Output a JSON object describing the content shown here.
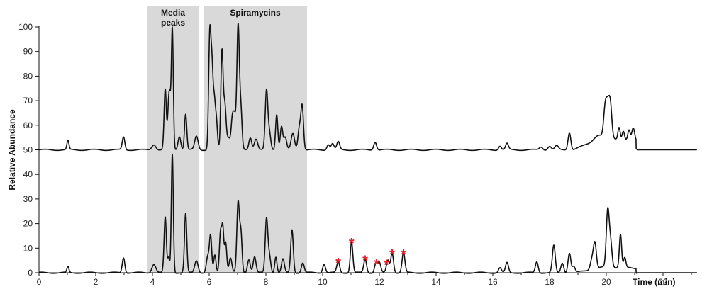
{
  "chart_data": {
    "type": "line",
    "title": "",
    "xlabel": "Time  (min)",
    "ylabel": "Relative Abundance",
    "xlim": [
      0,
      23.2
    ],
    "ylim": [
      0,
      100
    ],
    "x_ticks": [
      0,
      2,
      4,
      6,
      8,
      10,
      12,
      14,
      16,
      18,
      20,
      22
    ],
    "y_ticks": [
      0,
      10,
      20,
      30,
      40,
      50,
      60,
      70,
      80,
      90,
      100
    ],
    "y_tick_labels": [
      "0",
      "10",
      "20",
      "30",
      "40",
      "50",
      "60",
      "70",
      "80",
      "90",
      "100"
    ],
    "grid": false,
    "legend": "none",
    "regions": [
      {
        "label": "Media\npeaks",
        "x_start": 3.8,
        "x_end": 5.65,
        "color": "#d9d9d9"
      },
      {
        "label": "Spiramycins",
        "x_start": 5.8,
        "x_end": 9.45,
        "color": "#d9d9d9"
      }
    ],
    "series": [
      {
        "offset": 50,
        "color": "#111111",
        "end_x": 21.1,
        "baseline_after_end": 50,
        "peaks": [
          [
            1.02,
            3.7,
            0.035
          ],
          [
            2.98,
            5.2,
            0.045
          ],
          [
            4.05,
            2.2,
            0.07
          ],
          [
            4.45,
            24.5,
            0.04
          ],
          [
            4.57,
            17.5,
            0.035
          ],
          [
            4.62,
            14,
            0.03
          ],
          [
            4.7,
            49.5,
            0.035
          ],
          [
            4.95,
            5.5,
            0.05
          ],
          [
            5.17,
            14.5,
            0.04
          ],
          [
            5.55,
            5.5,
            0.06
          ],
          [
            6.02,
            45.5,
            0.04
          ],
          [
            6.1,
            31.5,
            0.04
          ],
          [
            6.18,
            16,
            0.035
          ],
          [
            6.25,
            12,
            0.04
          ],
          [
            6.45,
            39.5,
            0.04
          ],
          [
            6.55,
            18,
            0.045
          ],
          [
            6.68,
            5,
            0.06
          ],
          [
            6.82,
            13,
            0.045
          ],
          [
            6.9,
            11.5,
            0.04
          ],
          [
            7.02,
            50.5,
            0.045
          ],
          [
            7.12,
            15,
            0.04
          ],
          [
            7.45,
            5,
            0.05
          ],
          [
            7.65,
            4.5,
            0.06
          ],
          [
            8.02,
            23.5,
            0.045
          ],
          [
            8.12,
            7,
            0.05
          ],
          [
            8.38,
            14.5,
            0.04
          ],
          [
            8.55,
            9.5,
            0.045
          ],
          [
            8.68,
            5,
            0.05
          ],
          [
            8.95,
            6.5,
            0.06
          ],
          [
            9.18,
            9,
            0.05
          ],
          [
            9.28,
            17.5,
            0.045
          ],
          [
            10.2,
            2.2,
            0.05
          ],
          [
            10.35,
            2.5,
            0.05
          ],
          [
            10.55,
            3.2,
            0.05
          ],
          [
            11.85,
            3.3,
            0.05
          ],
          [
            16.25,
            1.6,
            0.05
          ],
          [
            16.5,
            2.5,
            0.05
          ],
          [
            17.7,
            1.2,
            0.06
          ],
          [
            18.0,
            1.5,
            0.06
          ],
          [
            18.25,
            1.6,
            0.06
          ],
          [
            18.7,
            7,
            0.05
          ],
          [
            19.7,
            2.2,
            0.15
          ],
          [
            19.95,
            8,
            0.05
          ],
          [
            20.05,
            14,
            0.07
          ],
          [
            20.15,
            10,
            0.05
          ],
          [
            20.45,
            5,
            0.04
          ],
          [
            20.6,
            3.5,
            0.04
          ],
          [
            20.8,
            4,
            0.04
          ],
          [
            20.95,
            5,
            0.05
          ]
        ],
        "hump": {
          "x_start": 18.8,
          "x_peak": 20.0,
          "x_end": 21.05,
          "height": 5
        }
      },
      {
        "offset": 0,
        "color": "#111111",
        "end_x": 21.1,
        "baseline_after_end": 0,
        "peaks": [
          [
            1.02,
            2.4,
            0.035
          ],
          [
            2.98,
            6.2,
            0.045
          ],
          [
            4.05,
            3.5,
            0.07
          ],
          [
            4.45,
            22.5,
            0.04
          ],
          [
            4.57,
            6,
            0.035
          ],
          [
            4.7,
            48.5,
            0.035
          ],
          [
            5.17,
            24,
            0.04
          ],
          [
            5.55,
            5,
            0.06
          ],
          [
            5.95,
            6.5,
            0.05
          ],
          [
            6.05,
            14.5,
            0.04
          ],
          [
            6.2,
            7,
            0.04
          ],
          [
            6.4,
            16.5,
            0.04
          ],
          [
            6.48,
            17.5,
            0.035
          ],
          [
            6.58,
            12.5,
            0.04
          ],
          [
            6.75,
            6,
            0.05
          ],
          [
            7.02,
            28.5,
            0.045
          ],
          [
            7.12,
            15.5,
            0.04
          ],
          [
            7.4,
            5.5,
            0.05
          ],
          [
            7.6,
            6.5,
            0.05
          ],
          [
            8.02,
            21.5,
            0.045
          ],
          [
            8.12,
            7,
            0.05
          ],
          [
            8.35,
            6.5,
            0.04
          ],
          [
            8.6,
            5.5,
            0.05
          ],
          [
            8.92,
            17.5,
            0.045
          ],
          [
            9.3,
            4,
            0.05
          ],
          [
            10.05,
            3.5,
            0.05
          ],
          [
            10.55,
            4.5,
            0.05
          ],
          [
            11.02,
            12.5,
            0.045
          ],
          [
            11.5,
            5.5,
            0.05
          ],
          [
            11.88,
            4,
            0.05
          ],
          [
            12.0,
            4,
            0.05
          ],
          [
            12.3,
            5,
            0.05
          ],
          [
            12.45,
            8,
            0.05
          ],
          [
            12.85,
            8,
            0.05
          ],
          [
            16.25,
            2,
            0.05
          ],
          [
            16.5,
            4,
            0.05
          ],
          [
            17.55,
            4.5,
            0.05
          ],
          [
            18.15,
            11,
            0.05
          ],
          [
            18.45,
            4,
            0.05
          ],
          [
            18.7,
            8,
            0.05
          ],
          [
            18.85,
            2.5,
            0.05
          ],
          [
            19.5,
            4.5,
            0.06
          ],
          [
            19.6,
            10,
            0.05
          ],
          [
            20.05,
            22.5,
            0.05
          ],
          [
            20.15,
            10,
            0.05
          ],
          [
            20.5,
            13.5,
            0.04
          ],
          [
            20.65,
            4,
            0.04
          ]
        ],
        "hump": {
          "x_start": 18.9,
          "x_peak": 20.0,
          "x_end": 21.05,
          "height": 2.5
        }
      }
    ],
    "annotations": [
      {
        "text": "*",
        "x": 10.55,
        "y": 5.5,
        "color": "#e8202a"
      },
      {
        "text": "*",
        "x": 11.02,
        "y": 13.5,
        "color": "#e8202a"
      },
      {
        "text": "*",
        "x": 11.5,
        "y": 6.5,
        "color": "#e8202a"
      },
      {
        "text": "*",
        "x": 11.9,
        "y": 5.0,
        "color": "#e8202a"
      },
      {
        "text": "*",
        "x": 12.25,
        "y": 4.8,
        "color": "#e8202a"
      },
      {
        "text": "*",
        "x": 12.45,
        "y": 9.0,
        "color": "#e8202a"
      },
      {
        "text": "*",
        "x": 12.85,
        "y": 9.0,
        "color": "#e8202a"
      }
    ]
  }
}
